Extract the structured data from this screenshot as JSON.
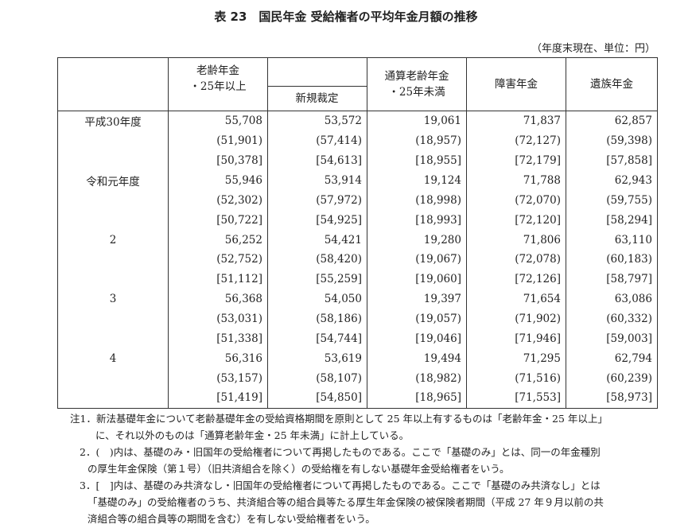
{
  "title": "表 23　国民年金 受給権者の平均年金月額の推移",
  "unit": "（年度末現在、単位：円）",
  "headers": {
    "old_age_line1": "老齢年金",
    "old_age_line2": "・25年以上",
    "new_award": "新規裁定",
    "tsusan_line1": "通算老齢年金",
    "tsusan_line2": "・25年未満",
    "disability": "障害年金",
    "survivor": "遺族年金"
  },
  "rows": [
    {
      "label": "平成30年度",
      "v": [
        "55,708",
        "53,572",
        "19,061",
        "71,837",
        "62,857"
      ]
    },
    {
      "label": "",
      "v": [
        "(51,901)",
        "(57,414)",
        "(18,957)",
        "(72,127)",
        "(59,398)"
      ]
    },
    {
      "label": "",
      "v": [
        "[50,378]",
        "[54,613]",
        "[18,955]",
        "[72,179]",
        "[57,858]"
      ]
    },
    {
      "label": "令和元年度",
      "v": [
        "55,946",
        "53,914",
        "19,124",
        "71,788",
        "62,943"
      ]
    },
    {
      "label": "",
      "v": [
        "(52,302)",
        "(57,972)",
        "(18,998)",
        "(72,070)",
        "(59,755)"
      ]
    },
    {
      "label": "",
      "v": [
        "[50,722]",
        "[54,925]",
        "[18,993]",
        "[72,120]",
        "[58,294]"
      ]
    },
    {
      "label": "2",
      "v": [
        "56,252",
        "54,421",
        "19,280",
        "71,806",
        "63,110"
      ]
    },
    {
      "label": "",
      "v": [
        "(52,752)",
        "(58,420)",
        "(19,067)",
        "(72,078)",
        "(60,183)"
      ]
    },
    {
      "label": "",
      "v": [
        "[51,112]",
        "[55,259]",
        "[19,060]",
        "[72,126]",
        "[58,797]"
      ]
    },
    {
      "label": "3",
      "v": [
        "56,368",
        "54,050",
        "19,397",
        "71,654",
        "63,086"
      ]
    },
    {
      "label": "",
      "v": [
        "(53,031)",
        "(58,186)",
        "(19,057)",
        "(71,902)",
        "(60,332)"
      ]
    },
    {
      "label": "",
      "v": [
        "[51,338]",
        "[54,744]",
        "[19,046]",
        "[71,946]",
        "[59,003]"
      ]
    },
    {
      "label": "4",
      "v": [
        "56,316",
        "53,619",
        "19,494",
        "71,295",
        "62,794"
      ]
    },
    {
      "label": "",
      "v": [
        "(53,157)",
        "(58,107)",
        "(18,982)",
        "(71,516)",
        "(60,239)"
      ]
    },
    {
      "label": "",
      "v": [
        "[51,419]",
        "[54,850]",
        "[18,965]",
        "[71,553]",
        "[58,973]"
      ]
    }
  ],
  "notes": [
    "注1．新法基礎年金について老齢基礎年金の受給資格期間を原則として 25 年以上有するものは「老齢年金・25 年以上」",
    "に、それ以外のものは「通算老齢年金・25 年未満」に計上している。",
    "2．(　)内は、基礎のみ・旧国年の受給権者について再掲したものである。ここで「基礎のみ」とは、同一の年金種別",
    "の厚生年金保険（第１号）（旧共済組合を除く）の受給権を有しない基礎年金受給権者をいう。",
    "3．[　]内は、基礎のみ共済なし・旧国年の受給権者について再掲したものである。ここで「基礎のみ共済なし」とは",
    "「基礎のみ」の受給権者のうち、共済組合等の組合員等たる厚生年金保険の被保険者期間（平成 27 年９月以前の共",
    "済組合等の組合員等の期間を含む）を有しない受給権者をいう。"
  ]
}
